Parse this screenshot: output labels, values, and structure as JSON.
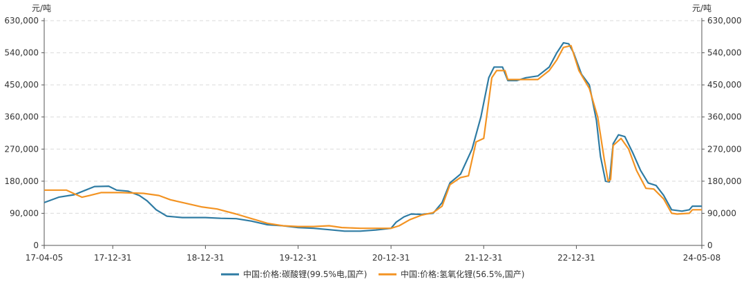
{
  "chart_data": {
    "type": "line",
    "unit_left": "元/吨",
    "unit_right": "元/吨",
    "xlabel": "",
    "ylabel": "",
    "ylim": [
      0,
      630000
    ],
    "y_ticks": [
      "0",
      "90,000",
      "180,000",
      "270,000",
      "360,000",
      "450,000",
      "540,000",
      "630,000"
    ],
    "y_tick_values": [
      0,
      90000,
      180000,
      270000,
      360000,
      450000,
      540000,
      630000
    ],
    "x_ticks": [
      {
        "label": "17-04-05",
        "date": "2017-04-05"
      },
      {
        "label": "17-12-31",
        "date": "2017-12-31"
      },
      {
        "label": "18-12-31",
        "date": "2018-12-31"
      },
      {
        "label": "19-12-31",
        "date": "2019-12-31"
      },
      {
        "label": "20-12-31",
        "date": "2020-12-31"
      },
      {
        "label": "21-12-31",
        "date": "2021-12-31"
      },
      {
        "label": "22-12-31",
        "date": "2022-12-31"
      },
      {
        "label": "24-05-08",
        "date": "2024-05-08"
      }
    ],
    "grid": true,
    "legend_position": "bottom",
    "series": [
      {
        "name": "中国:价格:碳酸锂(99.5%电,国产)",
        "color": "#2e7ba3",
        "points": [
          [
            "2017-04-05",
            120000
          ],
          [
            "2017-06-01",
            135000
          ],
          [
            "2017-08-01",
            142000
          ],
          [
            "2017-09-15",
            155000
          ],
          [
            "2017-10-20",
            165000
          ],
          [
            "2017-12-15",
            166000
          ],
          [
            "2018-01-15",
            155000
          ],
          [
            "2018-03-01",
            152000
          ],
          [
            "2018-04-15",
            140000
          ],
          [
            "2018-05-15",
            125000
          ],
          [
            "2018-06-20",
            100000
          ],
          [
            "2018-08-01",
            82000
          ],
          [
            "2018-10-01",
            78000
          ],
          [
            "2018-12-31",
            78000
          ],
          [
            "2019-03-01",
            76000
          ],
          [
            "2019-05-01",
            75000
          ],
          [
            "2019-07-01",
            68000
          ],
          [
            "2019-09-01",
            58000
          ],
          [
            "2019-11-01",
            55000
          ],
          [
            "2019-12-31",
            50000
          ],
          [
            "2020-03-01",
            48000
          ],
          [
            "2020-05-01",
            44000
          ],
          [
            "2020-07-01",
            40000
          ],
          [
            "2020-09-01",
            40000
          ],
          [
            "2020-11-01",
            43000
          ],
          [
            "2020-12-31",
            48000
          ],
          [
            "2021-01-20",
            65000
          ],
          [
            "2021-02-20",
            80000
          ],
          [
            "2021-03-20",
            88000
          ],
          [
            "2021-05-01",
            87000
          ],
          [
            "2021-06-15",
            90000
          ],
          [
            "2021-07-20",
            120000
          ],
          [
            "2021-08-20",
            175000
          ],
          [
            "2021-10-01",
            200000
          ],
          [
            "2021-11-15",
            270000
          ],
          [
            "2021-12-20",
            360000
          ],
          [
            "2022-01-20",
            470000
          ],
          [
            "2022-02-10",
            500000
          ],
          [
            "2022-03-15",
            500000
          ],
          [
            "2022-04-05",
            462000
          ],
          [
            "2022-05-10",
            462000
          ],
          [
            "2022-06-15",
            470000
          ],
          [
            "2022-08-01",
            475000
          ],
          [
            "2022-09-15",
            500000
          ],
          [
            "2022-10-15",
            540000
          ],
          [
            "2022-11-10",
            568000
          ],
          [
            "2022-12-01",
            565000
          ],
          [
            "2022-12-20",
            540000
          ],
          [
            "2023-01-20",
            480000
          ],
          [
            "2023-02-20",
            450000
          ],
          [
            "2023-03-20",
            350000
          ],
          [
            "2023-04-05",
            250000
          ],
          [
            "2023-04-25",
            180000
          ],
          [
            "2023-05-10",
            178000
          ],
          [
            "2023-05-25",
            285000
          ],
          [
            "2023-06-15",
            310000
          ],
          [
            "2023-07-10",
            305000
          ],
          [
            "2023-08-10",
            260000
          ],
          [
            "2023-09-10",
            210000
          ],
          [
            "2023-10-10",
            175000
          ],
          [
            "2023-11-10",
            168000
          ],
          [
            "2023-12-10",
            140000
          ],
          [
            "2024-01-10",
            100000
          ],
          [
            "2024-02-20",
            96000
          ],
          [
            "2024-03-20",
            100000
          ],
          [
            "2024-04-01",
            110000
          ],
          [
            "2024-05-08",
            110000
          ]
        ]
      },
      {
        "name": "中国:价格:氢氧化锂(56.5%,国产)",
        "color": "#f39322",
        "points": [
          [
            "2017-04-05",
            155000
          ],
          [
            "2017-07-01",
            155000
          ],
          [
            "2017-08-01",
            145000
          ],
          [
            "2017-09-01",
            135000
          ],
          [
            "2017-10-01",
            140000
          ],
          [
            "2017-11-15",
            148000
          ],
          [
            "2018-02-01",
            148000
          ],
          [
            "2018-05-01",
            146000
          ],
          [
            "2018-07-01",
            140000
          ],
          [
            "2018-08-15",
            128000
          ],
          [
            "2018-10-15",
            118000
          ],
          [
            "2018-12-15",
            108000
          ],
          [
            "2019-02-15",
            102000
          ],
          [
            "2019-05-01",
            88000
          ],
          [
            "2019-07-01",
            75000
          ],
          [
            "2019-09-01",
            62000
          ],
          [
            "2019-11-01",
            55000
          ],
          [
            "2019-12-31",
            53000
          ],
          [
            "2020-03-01",
            53000
          ],
          [
            "2020-05-01",
            55000
          ],
          [
            "2020-06-20",
            50000
          ],
          [
            "2020-09-01",
            48000
          ],
          [
            "2020-12-31",
            48000
          ],
          [
            "2021-02-01",
            55000
          ],
          [
            "2021-03-15",
            72000
          ],
          [
            "2021-05-01",
            85000
          ],
          [
            "2021-06-15",
            92000
          ],
          [
            "2021-07-20",
            110000
          ],
          [
            "2021-08-20",
            170000
          ],
          [
            "2021-09-30",
            190000
          ],
          [
            "2021-11-01",
            195000
          ],
          [
            "2021-12-01",
            290000
          ],
          [
            "2021-12-31",
            300000
          ],
          [
            "2022-02-01",
            470000
          ],
          [
            "2022-02-20",
            490000
          ],
          [
            "2022-03-25",
            490000
          ],
          [
            "2022-04-05",
            465000
          ],
          [
            "2022-05-01",
            465000
          ],
          [
            "2022-08-01",
            465000
          ],
          [
            "2022-09-15",
            490000
          ],
          [
            "2022-10-15",
            520000
          ],
          [
            "2022-11-10",
            555000
          ],
          [
            "2022-12-10",
            560000
          ],
          [
            "2023-01-10",
            490000
          ],
          [
            "2023-02-20",
            440000
          ],
          [
            "2023-03-25",
            360000
          ],
          [
            "2023-04-20",
            240000
          ],
          [
            "2023-05-05",
            180000
          ],
          [
            "2023-05-15",
            185000
          ],
          [
            "2023-05-25",
            280000
          ],
          [
            "2023-06-25",
            300000
          ],
          [
            "2023-07-25",
            270000
          ],
          [
            "2023-08-25",
            210000
          ],
          [
            "2023-10-01",
            160000
          ],
          [
            "2023-11-01",
            158000
          ],
          [
            "2023-12-10",
            130000
          ],
          [
            "2024-01-10",
            90000
          ],
          [
            "2024-02-01",
            88000
          ],
          [
            "2024-03-20",
            90000
          ],
          [
            "2024-04-01",
            100000
          ],
          [
            "2024-05-08",
            100000
          ]
        ]
      }
    ]
  }
}
